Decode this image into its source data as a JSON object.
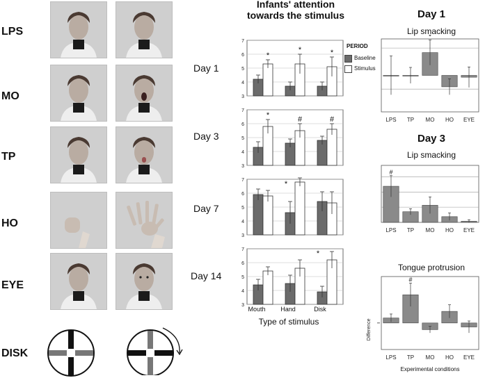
{
  "conditions": [
    "LPS",
    "MO",
    "TP",
    "HO",
    "EYE",
    "DISK"
  ],
  "days": [
    "Day 1",
    "Day 3",
    "Day 7",
    "Day 14"
  ],
  "middle": {
    "title_line1": "Infants' attention",
    "title_line2": "towards the stimulus",
    "legend_title": "PERIOD",
    "legend_baseline": "Baseline",
    "legend_stimulus": "Stimulus",
    "xlabel": "Type of stimulus",
    "baseline_color": "#6b6b6b",
    "stimulus_color": "#ffffff"
  },
  "right": {
    "day1_title": "Day 1",
    "day3_title": "Day 3",
    "lip_smacking": "Lip smacking",
    "tongue_protrusion": "Tongue protrusion",
    "ylabel": "Difference",
    "xlabel": "Experimental conditions"
  },
  "chart_data": [
    {
      "id": "attention-day1",
      "type": "bar",
      "title": "Day 1",
      "categories": [
        "Mouth",
        "Hand",
        "Disk"
      ],
      "ylim": [
        3,
        7
      ],
      "yticks": [
        3,
        4,
        5,
        6,
        7
      ],
      "series": [
        {
          "name": "Baseline",
          "values": [
            4.2,
            3.7,
            3.7
          ],
          "errors": [
            0.3,
            0.3,
            0.3
          ]
        },
        {
          "name": "Stimulus",
          "values": [
            5.3,
            5.3,
            5.1
          ],
          "errors": [
            0.3,
            0.7,
            0.7
          ]
        }
      ],
      "sig": [
        "*",
        "*",
        "*"
      ]
    },
    {
      "id": "attention-day3",
      "type": "bar",
      "title": "Day 3",
      "categories": [
        "Mouth",
        "Hand",
        "Disk"
      ],
      "ylim": [
        3,
        7
      ],
      "yticks": [
        3,
        4,
        5,
        6,
        7
      ],
      "series": [
        {
          "name": "Baseline",
          "values": [
            4.3,
            4.6,
            4.8
          ],
          "errors": [
            0.4,
            0.3,
            0.3
          ]
        },
        {
          "name": "Stimulus",
          "values": [
            5.8,
            5.5,
            5.6
          ],
          "errors": [
            0.5,
            0.5,
            0.4
          ]
        }
      ],
      "sig": [
        "*",
        "#",
        "#"
      ]
    },
    {
      "id": "attention-day7",
      "type": "bar",
      "title": "Day 7",
      "categories": [
        "Mouth",
        "Hand",
        "Disk"
      ],
      "ylim": [
        3,
        7
      ],
      "yticks": [
        3,
        4,
        5,
        6,
        7
      ],
      "series": [
        {
          "name": "Baseline",
          "values": [
            5.9,
            4.6,
            5.4
          ],
          "errors": [
            0.4,
            0.8,
            0.7
          ]
        },
        {
          "name": "Stimulus",
          "values": [
            5.8,
            6.8,
            5.3
          ],
          "errors": [
            0.4,
            0.3,
            0.8
          ]
        }
      ],
      "sig": [
        "",
        "*",
        ""
      ]
    },
    {
      "id": "attention-day14",
      "type": "bar",
      "title": "Day 14",
      "categories": [
        "Mouth",
        "Hand",
        "Disk"
      ],
      "ylim": [
        3,
        7
      ],
      "yticks": [
        3,
        4,
        5,
        6,
        7
      ],
      "series": [
        {
          "name": "Baseline",
          "values": [
            4.4,
            4.5,
            3.9
          ],
          "errors": [
            0.4,
            0.6,
            0.4
          ]
        },
        {
          "name": "Stimulus",
          "values": [
            5.4,
            5.6,
            6.2
          ],
          "errors": [
            0.3,
            0.6,
            0.6
          ]
        }
      ],
      "sig": [
        "",
        "",
        "*"
      ]
    },
    {
      "id": "lip-smacking-day1",
      "type": "bar",
      "title": "Lip smacking",
      "categories": [
        "LPS",
        "TP",
        "MO",
        "HO",
        "EYE"
      ],
      "ylim": [
        -1.6,
        1.6
      ],
      "values": [
        0.0,
        0.0,
        1.0,
        -0.5,
        -0.08
      ],
      "errors": [
        0.85,
        0.35,
        0.55,
        0.35,
        0.45
      ],
      "sig": [
        "",
        "",
        "*",
        "",
        ""
      ]
    },
    {
      "id": "lip-smacking-day3",
      "type": "bar",
      "title": "Lip smacking",
      "categories": [
        "LPS",
        "TP",
        "MO",
        "HO",
        "EYE"
      ],
      "ylim": [
        0,
        1.5
      ],
      "values": [
        0.95,
        0.28,
        0.45,
        0.15,
        0.03
      ],
      "errors": [
        0.28,
        0.08,
        0.22,
        0.1,
        0.04
      ],
      "sig": [
        "#",
        "",
        "",
        "",
        ""
      ]
    },
    {
      "id": "tongue-protrusion-day3",
      "type": "bar",
      "title": "Tongue protrusion",
      "categories": [
        "LPS",
        "TP",
        "MO",
        "HO",
        "EYE"
      ],
      "ylim": [
        -0.8,
        1.4
      ],
      "values": [
        0.15,
        0.85,
        -0.2,
        0.35,
        -0.12
      ],
      "errors": [
        0.12,
        0.35,
        0.1,
        0.2,
        0.18
      ],
      "sig": [
        "",
        "#",
        "",
        "",
        ""
      ]
    }
  ]
}
